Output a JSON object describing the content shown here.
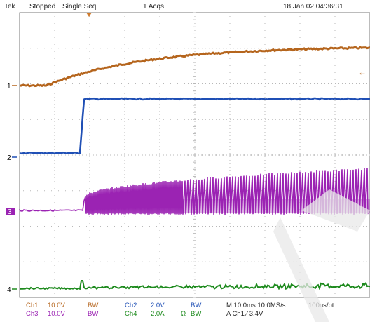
{
  "header": {
    "brand": "Tek",
    "acq_state": "Stopped",
    "acq_mode": "Single Seq",
    "acq_count": "1 Acqs",
    "datetime": "18 Jan 02 04:36:31"
  },
  "markers": {
    "ch1": "1",
    "ch2": "2",
    "ch3": "3",
    "ch4": "4",
    "right_arrow": "←"
  },
  "footer": {
    "ch1_label": "Ch1",
    "ch1_scale": "10.0V",
    "ch1_bw": "BW",
    "ch2_label": "Ch2",
    "ch2_scale": "2.0V",
    "ch2_bw": "BW",
    "ch3_label": "Ch3",
    "ch3_scale": "10.0V",
    "ch3_bw": "BW",
    "ch4_label": "Ch4",
    "ch4_scale": "2.0A",
    "ch4_ohm": "Ω",
    "ch4_bw": "BW",
    "timebase": "M 10.0ms 10.0MS/s",
    "record": "100ns/pt",
    "trigger": "A Ch1 ⁄ 3.4V"
  },
  "colors": {
    "ch1": "#b5651d",
    "ch2": "#1f4fb5",
    "ch3": "#9b23b3",
    "ch4": "#1d8a1d",
    "grid": "#b8b8b8"
  },
  "chart_data": {
    "type": "line",
    "title": "",
    "xlabel": "",
    "ylabel": "",
    "series": [
      {
        "channel": "Ch1",
        "description": "rising RC-like curve",
        "values": [
          1.0,
          1.0,
          1.1,
          2.0,
          2.6,
          3.1,
          3.4,
          3.55,
          3.6,
          3.65
        ]
      },
      {
        "channel": "Ch2",
        "description": "step high",
        "values": [
          0.0,
          0.0,
          0.0,
          0.0,
          1.0,
          1.0,
          1.0,
          1.0,
          1.0,
          1.0
        ]
      },
      {
        "channel": "Ch3",
        "description": "switching burst after step",
        "values": [
          0.0,
          0.0,
          0.0,
          0.0,
          0.9,
          1.0,
          1.0,
          1.0,
          1.0,
          1.0
        ]
      },
      {
        "channel": "Ch4",
        "description": "small noisy current",
        "values": [
          0.0,
          0.0,
          0.0,
          0.0,
          0.05,
          0.05,
          0.06,
          0.07,
          0.07,
          0.08
        ]
      }
    ]
  }
}
